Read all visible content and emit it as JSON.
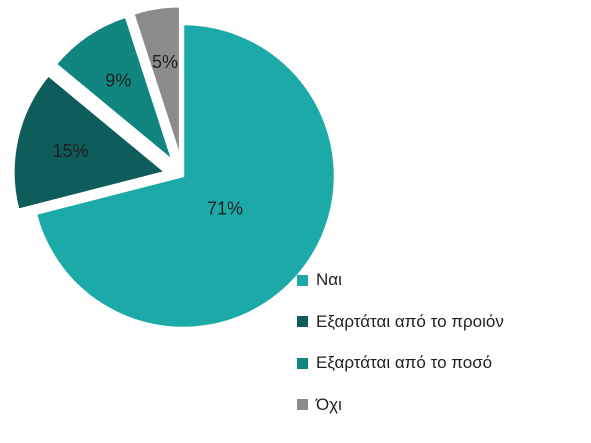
{
  "chart_data": {
    "type": "pie",
    "title": "",
    "slices": [
      {
        "label": "Ναι",
        "value": 71,
        "display": "71%",
        "color": "#1BAAA8",
        "exploded": false
      },
      {
        "label": "Εξαρτάται από το προιόν",
        "value": 15,
        "display": "15%",
        "color": "#0E5D5B",
        "exploded": true
      },
      {
        "label": "Εξαρτάται από το ποσό",
        "value": 9,
        "display": "9%",
        "color": "#118580",
        "exploded": true
      },
      {
        "label": "Όχι",
        "value": 5,
        "display": "5%",
        "color": "#8C8C8C",
        "exploded": true
      }
    ],
    "legend_position": "bottom-right"
  }
}
